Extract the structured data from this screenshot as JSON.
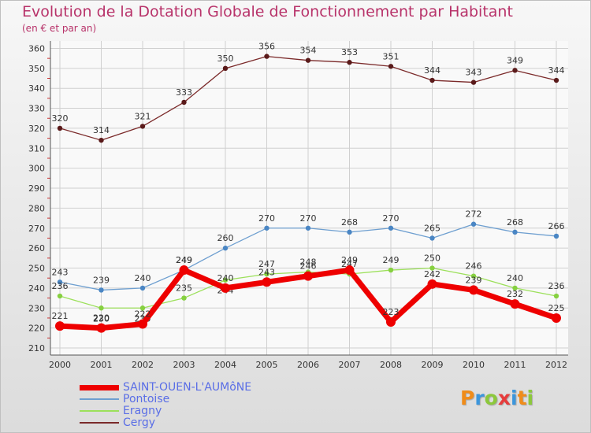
{
  "header": {
    "title": "Evolution de la Dotation Globale de Fonctionnement par Habitant",
    "subtitle": "(en € et par an)"
  },
  "logo": {
    "letters": [
      "P",
      "r",
      "o",
      "x",
      "i",
      "t",
      "i"
    ],
    "colors": [
      "#f08c19",
      "#3c96dc",
      "#8cc83c",
      "#e63c3c",
      "#3c96dc",
      "#f08c19",
      "#8cc83c"
    ]
  },
  "chart_data": {
    "type": "line",
    "title": "Evolution de la Dotation Globale de Fonctionnement par Habitant",
    "subtitle": "(en € et par an)",
    "xlabel": "",
    "ylabel": "",
    "ylim": [
      210,
      360
    ],
    "yticks": [
      210,
      220,
      230,
      240,
      250,
      260,
      270,
      280,
      290,
      300,
      310,
      320,
      330,
      340,
      350,
      360
    ],
    "grid": true,
    "legend_position": "bottom-left",
    "categories": [
      "2000",
      "2001",
      "2002",
      "2003",
      "2004",
      "2005",
      "2006",
      "2007",
      "2008",
      "2009",
      "2010",
      "2011",
      "2012"
    ],
    "series": [
      {
        "name": "Cergy",
        "color": "#7b2a2a",
        "values": [
          320,
          314,
          321,
          333,
          350,
          356,
          354,
          353,
          351,
          344,
          343,
          349,
          344
        ]
      },
      {
        "name": "Pontoise",
        "color": "#6e9fd0",
        "values": [
          243,
          239,
          240,
          249,
          260,
          270,
          270,
          268,
          270,
          265,
          272,
          268,
          266
        ]
      },
      {
        "name": "Eragny",
        "color": "#9ce05a",
        "values": [
          236,
          230,
          230,
          235,
          244,
          247,
          248,
          247,
          249,
          250,
          246,
          240,
          236
        ]
      },
      {
        "name": "SAINT-OUEN-L'AUMôNE",
        "color": "#ee0000",
        "values": [
          221,
          220,
          222,
          249,
          240,
          243,
          246,
          249,
          223,
          242,
          239,
          232,
          225
        ]
      }
    ],
    "legend_order": [
      "SAINT-OUEN-L'AUMôNE",
      "Pontoise",
      "Eragny",
      "Cergy"
    ]
  }
}
